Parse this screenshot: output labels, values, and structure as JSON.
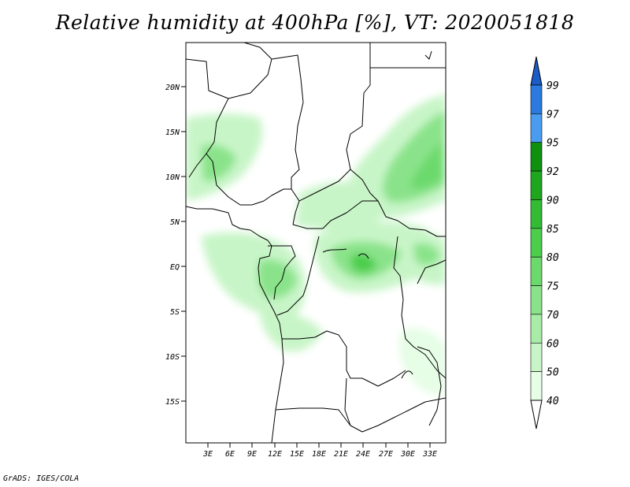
{
  "title": "Relative humidity at 400hPa [%], VT: 2020051818",
  "credit": "GrADS: IGES/COLA",
  "map": {
    "lon_ticks": [
      "3E",
      "6E",
      "9E",
      "12E",
      "15E",
      "18E",
      "21E",
      "24E",
      "27E",
      "30E",
      "33E"
    ],
    "lat_ticks": [
      "20N",
      "15N",
      "10N",
      "5N",
      "EQ",
      "5S",
      "10S",
      "15S"
    ]
  },
  "colorbar": {
    "levels": [
      "40",
      "50",
      "60",
      "70",
      "75",
      "80",
      "85",
      "90",
      "92",
      "95",
      "97",
      "99"
    ],
    "colors": [
      "#ffffff",
      "#e6fde6",
      "#c8f5c8",
      "#a8eca8",
      "#8ae38a",
      "#6cd96c",
      "#4ccd4c",
      "#33bb33",
      "#1fa61f",
      "#0f900f",
      "#4a9cf0",
      "#2a7ae0",
      "#1a5cc8"
    ]
  }
}
